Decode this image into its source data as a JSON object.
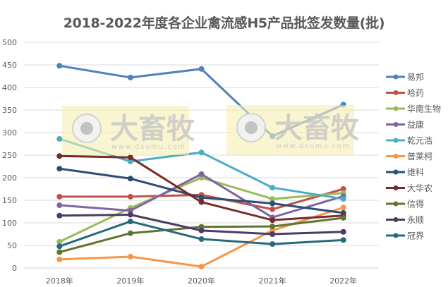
{
  "chart_data": {
    "type": "line",
    "title": "2018-2022年度各企业禽流感H5产品批签发数量(批)",
    "xlabel": "",
    "ylabel": "",
    "categories": [
      "2018年",
      "2019年",
      "2020年",
      "2021年",
      "2022年"
    ],
    "ylim": [
      0,
      500
    ],
    "yticks": [
      0,
      50,
      100,
      150,
      200,
      250,
      300,
      350,
      400,
      450,
      500
    ],
    "grid": true,
    "legend_position": "right",
    "series": [
      {
        "name": "易邦",
        "color": "#4f81bd",
        "values": [
          448,
          422,
          441,
          292,
          362
        ]
      },
      {
        "name": "哈药",
        "color": "#c0504d",
        "values": [
          158,
          158,
          162,
          130,
          175
        ]
      },
      {
        "name": "华南生物",
        "color": "#9bbb59",
        "values": [
          58,
          133,
          200,
          153,
          166
        ]
      },
      {
        "name": "益康",
        "color": "#8064a2",
        "values": [
          139,
          127,
          208,
          112,
          159
        ]
      },
      {
        "name": "乾元浩",
        "color": "#4bacc6",
        "values": [
          286,
          236,
          256,
          178,
          153
        ]
      },
      {
        "name": "普莱柯",
        "color": "#f79646",
        "values": [
          19,
          25,
          3,
          83,
          134
        ]
      },
      {
        "name": "维科",
        "color": "#2c4d75",
        "values": [
          220,
          198,
          156,
          143,
          122
        ]
      },
      {
        "name": "大华农",
        "color": "#772c2a",
        "values": [
          248,
          245,
          146,
          106,
          116
        ]
      },
      {
        "name": "信得",
        "color": "#5f7530",
        "values": [
          35,
          77,
          91,
          92,
          111
        ]
      },
      {
        "name": "永顺",
        "color": "#4d3b62",
        "values": [
          116,
          118,
          83,
          75,
          80
        ]
      },
      {
        "name": "冠界",
        "color": "#276a7c",
        "values": [
          48,
          103,
          64,
          53,
          62
        ]
      }
    ]
  },
  "watermarks": [
    {
      "brand": "大畜牧",
      "url": "www.dxumu.com"
    },
    {
      "brand": "大畜牧",
      "url": "www.dxumu.com"
    }
  ]
}
